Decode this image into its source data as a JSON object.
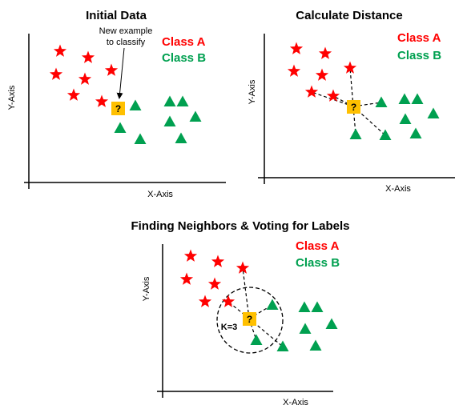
{
  "colors": {
    "class_a": "#ff0000",
    "class_b": "#00a050",
    "query": "#ffc000",
    "axis": "#000000"
  },
  "panel1": {
    "title": "Initial Data",
    "x_label": "X-Axis",
    "y_label": "Y-Axis",
    "legend_a": "Class A",
    "legend_b": "Class B",
    "note_line1": "New example",
    "note_line2": "to classify",
    "query": "?"
  },
  "panel2": {
    "title": "Calculate Distance",
    "x_label": "X-Axis",
    "y_label": "Y-Axis",
    "legend_a": "Class A",
    "legend_b": "Class B",
    "query": "?"
  },
  "panel3": {
    "title": "Finding Neighbors & Voting for Labels",
    "x_label": "X-Axis",
    "y_label": "Y-Axis",
    "legend_a": "Class A",
    "legend_b": "Class B",
    "k_label": "K=3",
    "query": "?"
  }
}
